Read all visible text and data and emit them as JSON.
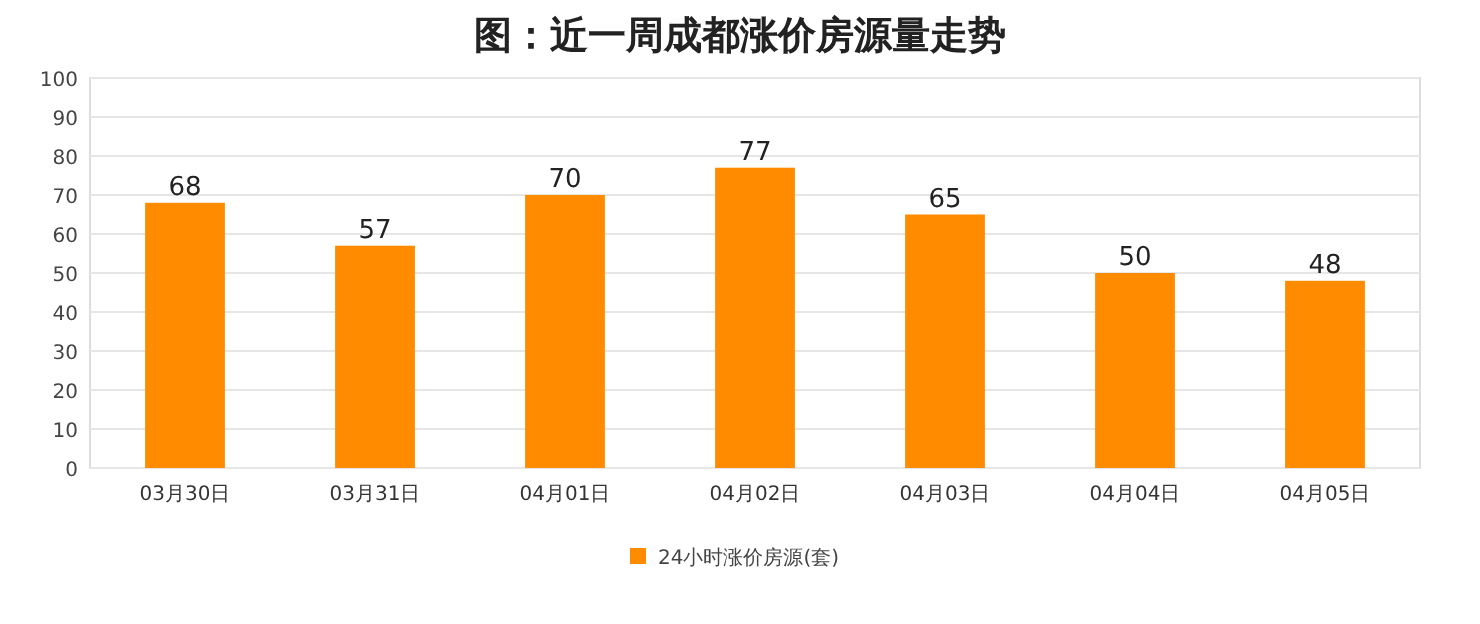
{
  "chart_data": {
    "type": "bar",
    "title": "图：近一周成都涨价房源量走势",
    "categories": [
      "03月30日",
      "03月31日",
      "04月01日",
      "04月02日",
      "04月03日",
      "04月04日",
      "04月05日"
    ],
    "series": [
      {
        "name": "24小时涨价房源(套)",
        "color": "#ff8c00",
        "values": [
          68,
          57,
          70,
          77,
          65,
          50,
          48
        ]
      }
    ],
    "ylim": [
      0,
      100
    ],
    "yticks": [
      0,
      10,
      20,
      30,
      40,
      50,
      60,
      70,
      80,
      90,
      100
    ],
    "grid": "y",
    "legend": "bottom",
    "data_labels": true
  }
}
